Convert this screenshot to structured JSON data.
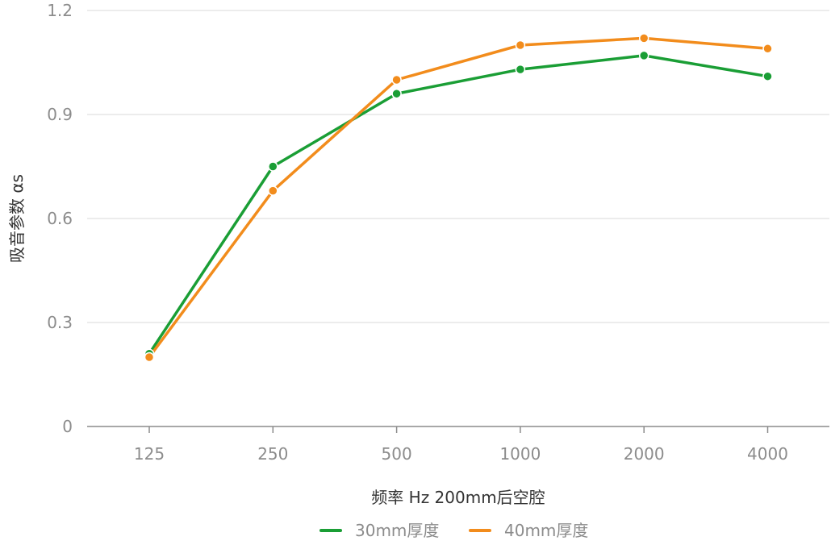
{
  "chart_data": {
    "type": "line",
    "title": "",
    "xlabel": "频率 Hz  200mm后空腔",
    "ylabel": "吸音参数 αs",
    "categories": [
      "125",
      "250",
      "500",
      "1000",
      "2000",
      "4000"
    ],
    "y_ticks": [
      "0",
      "0.3",
      "0.6",
      "0.9",
      "1.2"
    ],
    "ylim": [
      0,
      1.2
    ],
    "grid": true,
    "legend_position": "bottom-center",
    "series": [
      {
        "name": "30mm厚度",
        "color": "#1a9e35",
        "values": [
          0.21,
          0.75,
          0.96,
          1.03,
          1.07,
          1.01
        ]
      },
      {
        "name": "40mm厚度",
        "color": "#f28c1c",
        "values": [
          0.2,
          0.68,
          1.0,
          1.1,
          1.12,
          1.09
        ]
      }
    ]
  }
}
